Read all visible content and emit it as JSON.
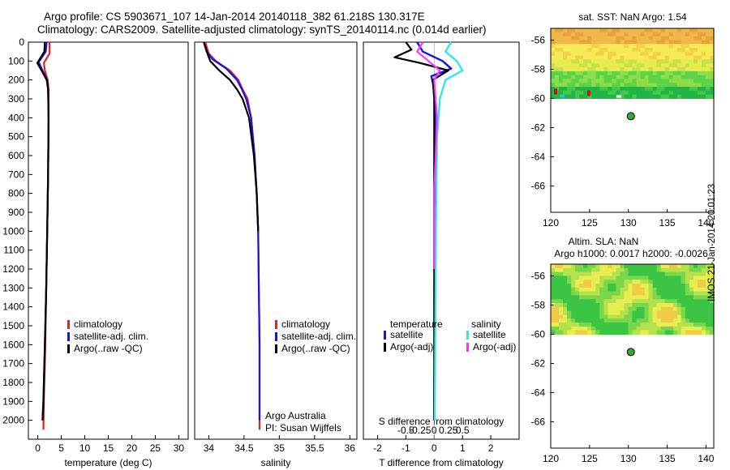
{
  "title": {
    "line1": "Argo profile: CS 5903671_107 14-Jan-2014 20140118_382 61.218S 130.317E",
    "line2": "Climatology: CARS2009. Satellite-adjusted climatology: synTS_20140114.nc (0.014d earlier)"
  },
  "side_label": "IMOS 21-Jan-2014 20:01:23",
  "colors": {
    "climatology": "#e8211a",
    "satellite_clim": "#1414e6",
    "argo": "#000000",
    "sal_satellite": "#33e6e6",
    "sal_argo": "#ff33ff",
    "float_marker": "#33aa33"
  },
  "chart_data": [
    {
      "type": "line",
      "name": "temperature-profile",
      "xlabel": "temperature (deg C)",
      "ylabel": "",
      "xlim": [
        -2,
        32
      ],
      "ylim": [
        2100,
        0
      ],
      "xticks": [
        0,
        5,
        10,
        15,
        20,
        25,
        30
      ],
      "yticks": [
        0,
        100,
        200,
        300,
        400,
        500,
        600,
        700,
        800,
        900,
        1000,
        1100,
        1200,
        1300,
        1400,
        1500,
        1600,
        1700,
        1800,
        1900,
        2000
      ],
      "legend": [
        "climatology",
        "satellite-adj. clim.",
        "Argo(..raw -QC)"
      ],
      "series": [
        {
          "name": "climatology",
          "x": [
            2.5,
            2.5,
            1.3,
            1.5,
            2.1,
            2.3,
            2.3,
            2.2,
            2.0,
            1.8,
            1.6,
            1.3,
            1.2
          ],
          "y": [
            0,
            60,
            110,
            150,
            200,
            250,
            400,
            700,
            1000,
            1300,
            1600,
            1900,
            2050
          ]
        },
        {
          "name": "satellite-adj. clim.",
          "x": [
            1.9,
            1.7,
            0.2,
            1.0,
            2.0,
            2.2,
            2.3,
            2.2,
            2.0,
            1.8,
            1.5,
            1.2,
            1.0
          ],
          "y": [
            0,
            50,
            105,
            150,
            200,
            250,
            400,
            700,
            1000,
            1300,
            1600,
            1900,
            2000
          ]
        },
        {
          "name": "Argo(..raw -QC)",
          "x": [
            1.5,
            1.4,
            -0.1,
            0.8,
            1.9,
            2.2,
            2.3,
            2.2,
            2.0,
            1.8,
            1.5,
            1.2,
            1.0
          ],
          "y": [
            0,
            50,
            110,
            150,
            200,
            250,
            400,
            700,
            1000,
            1300,
            1600,
            1900,
            2000
          ]
        }
      ]
    },
    {
      "type": "line",
      "name": "salinity-profile",
      "xlabel": "salinity",
      "xlim": [
        33.8,
        36.1
      ],
      "ylim": [
        2100,
        0
      ],
      "xticks": [
        34,
        34.5,
        35,
        35.5,
        36
      ],
      "xticklabels": [
        "34",
        "34.5",
        "35",
        "35.5",
        "36"
      ],
      "legend": [
        "climatology",
        "satellite-adj. clim.",
        "Argo(..raw -QC)"
      ],
      "annotation": [
        "Argo Australia",
        "PI: Susan Wijffels"
      ],
      "series": [
        {
          "name": "climatology",
          "x": [
            33.95,
            34.0,
            34.1,
            34.3,
            34.42,
            34.48,
            34.55,
            34.6,
            34.65,
            34.68,
            34.7,
            34.71,
            34.72,
            34.72,
            34.72
          ],
          "y": [
            0,
            60,
            100,
            150,
            200,
            250,
            300,
            400,
            600,
            800,
            1000,
            1300,
            1600,
            1900,
            2050
          ]
        },
        {
          "name": "satellite-adj. clim.",
          "x": [
            33.93,
            33.97,
            34.05,
            34.25,
            34.4,
            34.47,
            34.53,
            34.6,
            34.65,
            34.68,
            34.7,
            34.71,
            34.72,
            34.72,
            34.72
          ],
          "y": [
            0,
            50,
            90,
            140,
            200,
            250,
            300,
            400,
            600,
            800,
            1000,
            1300,
            1600,
            1900,
            2000
          ]
        },
        {
          "name": "Argo(..raw -QC)",
          "x": [
            33.93,
            33.98,
            34.02,
            34.15,
            34.3,
            34.4,
            34.48,
            34.57,
            34.64,
            34.68,
            34.7
          ],
          "y": [
            0,
            60,
            100,
            150,
            200,
            250,
            300,
            400,
            600,
            800,
            1000
          ]
        }
      ]
    },
    {
      "type": "line",
      "name": "difference-profile",
      "xlabel": "T difference from climatology",
      "x2label": "S difference from climatology",
      "xlim": [
        -2.5,
        3.0
      ],
      "ylim": [
        2100,
        0
      ],
      "xticks": [
        -2,
        -1,
        0,
        1,
        2
      ],
      "xticklabels": [
        "-2",
        "-1",
        "0",
        "1",
        "2"
      ],
      "x2ticks": [
        -0.5,
        -0.25,
        0,
        0.25,
        0.5
      ],
      "x2ticklabels": [
        "-0.5",
        "-0.25",
        "0",
        "0.25",
        "0.5"
      ],
      "legend_groups": [
        {
          "heading": "temperature",
          "items": [
            "satellite",
            "Argo(-adj)"
          ]
        },
        {
          "heading": "salinity",
          "items": [
            "satellite",
            "Argo(-adj)"
          ]
        }
      ],
      "series": [
        {
          "name": "temperature satellite",
          "x": [
            -0.6,
            -0.4,
            0.3,
            0.6,
            -0.1,
            0.0,
            0.05,
            0.05,
            0.02,
            0.0
          ],
          "y": [
            0,
            50,
            100,
            140,
            180,
            250,
            500,
            1000,
            1500,
            2000
          ]
        },
        {
          "name": "temperature Argo(-adj)",
          "x": [
            -1.0,
            -0.8,
            -1.4,
            -0.5,
            0.5,
            -0.05,
            0.0,
            0.0,
            0.0,
            0.0
          ],
          "y": [
            0,
            40,
            80,
            110,
            150,
            200,
            300,
            700,
            1200,
            2000
          ]
        },
        {
          "name": "salinity satellite",
          "x": [
            0.3,
            0.2,
            0.4,
            0.5,
            0.2,
            0.1,
            0.05,
            0.03,
            0.02,
            0.01
          ],
          "y": [
            0,
            50,
            100,
            150,
            200,
            300,
            500,
            1000,
            1500,
            2000
          ]
        },
        {
          "name": "salinity Argo(-adj)",
          "x": [
            -0.2,
            -0.3,
            -0.1,
            0.1,
            0.0,
            0.05,
            0.0,
            0.0
          ],
          "y": [
            0,
            50,
            100,
            150,
            200,
            400,
            800,
            1200
          ]
        }
      ]
    },
    {
      "type": "heatmap",
      "name": "sst-map",
      "title": "sat. SST: NaN Argo: 1.54",
      "xlim": [
        120,
        141
      ],
      "ylim": [
        -67.8,
        -55.2
      ],
      "xticks": [
        120,
        125,
        130,
        135,
        140
      ],
      "yticks": [
        -56,
        -58,
        -60,
        -62,
        -64,
        -66
      ],
      "float_position": {
        "lon": 130.317,
        "lat": -61.218
      }
    },
    {
      "type": "heatmap",
      "name": "sla-map",
      "title": "Altim. SLA: NaN",
      "subtitle": "Argo h1000: 0.0017 h2000: -0.0026",
      "xlim": [
        120,
        141
      ],
      "ylim": [
        -67.8,
        -55.2
      ],
      "xticks": [
        120,
        125,
        130,
        135,
        140
      ],
      "yticks": [
        -56,
        -58,
        -60,
        -62,
        -64,
        -66
      ],
      "float_position": {
        "lon": 130.317,
        "lat": -61.218
      }
    }
  ]
}
